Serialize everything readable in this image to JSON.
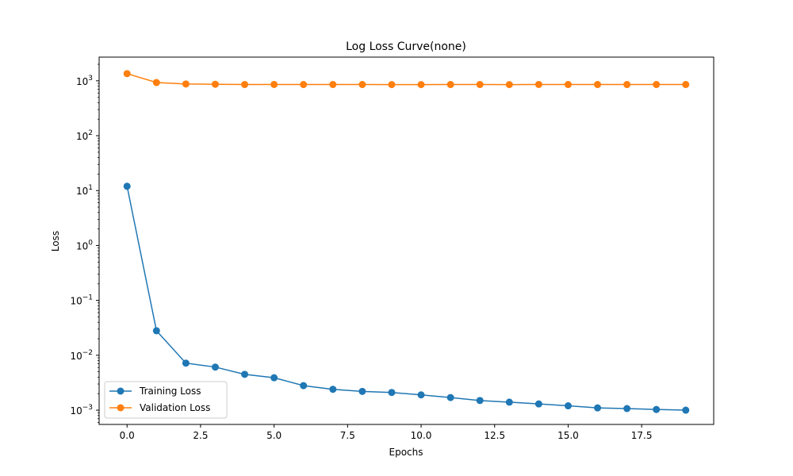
{
  "chart_data": {
    "type": "line",
    "title": "Log Loss Curve(none)",
    "xlabel": "Epochs",
    "ylabel": "Loss",
    "xlim": [
      -0.95,
      19.95
    ],
    "ylim": [
      0.00055,
      2700
    ],
    "yscale": "log",
    "grid": false,
    "legend_position": "lower-left",
    "x_ticks": [
      {
        "value": 0,
        "label": "0.0"
      },
      {
        "value": 2.5,
        "label": "2.5"
      },
      {
        "value": 5,
        "label": "5.0"
      },
      {
        "value": 7.5,
        "label": "7.5"
      },
      {
        "value": 10,
        "label": "10.0"
      },
      {
        "value": 12.5,
        "label": "12.5"
      },
      {
        "value": 15,
        "label": "15.0"
      },
      {
        "value": 17.5,
        "label": "17.5"
      }
    ],
    "y_ticks": [
      {
        "value": 0.001,
        "base": "10",
        "exp": "−3"
      },
      {
        "value": 0.01,
        "base": "10",
        "exp": "−2"
      },
      {
        "value": 0.1,
        "base": "10",
        "exp": "−1"
      },
      {
        "value": 1,
        "base": "10",
        "exp": "0"
      },
      {
        "value": 10,
        "base": "10",
        "exp": "1"
      },
      {
        "value": 100,
        "base": "10",
        "exp": "2"
      },
      {
        "value": 1000,
        "base": "10",
        "exp": "3"
      }
    ],
    "x": [
      0,
      1,
      2,
      3,
      4,
      5,
      6,
      7,
      8,
      9,
      10,
      11,
      12,
      13,
      14,
      15,
      16,
      17,
      18,
      19
    ],
    "series": [
      {
        "name": "Training Loss",
        "color": "#1f77b4",
        "values": [
          12,
          0.028,
          0.0072,
          0.0061,
          0.0045,
          0.0039,
          0.0028,
          0.0024,
          0.0022,
          0.0021,
          0.0019,
          0.0017,
          0.0015,
          0.0014,
          0.0013,
          0.0012,
          0.0011,
          0.00107,
          0.00103,
          0.001
        ]
      },
      {
        "name": "Validation Loss",
        "color": "#ff7f0e",
        "values": [
          1350,
          930,
          875,
          865,
          855,
          858,
          855,
          855,
          855,
          853,
          853,
          855,
          855,
          853,
          858,
          855,
          855,
          855,
          855,
          855
        ]
      }
    ]
  }
}
